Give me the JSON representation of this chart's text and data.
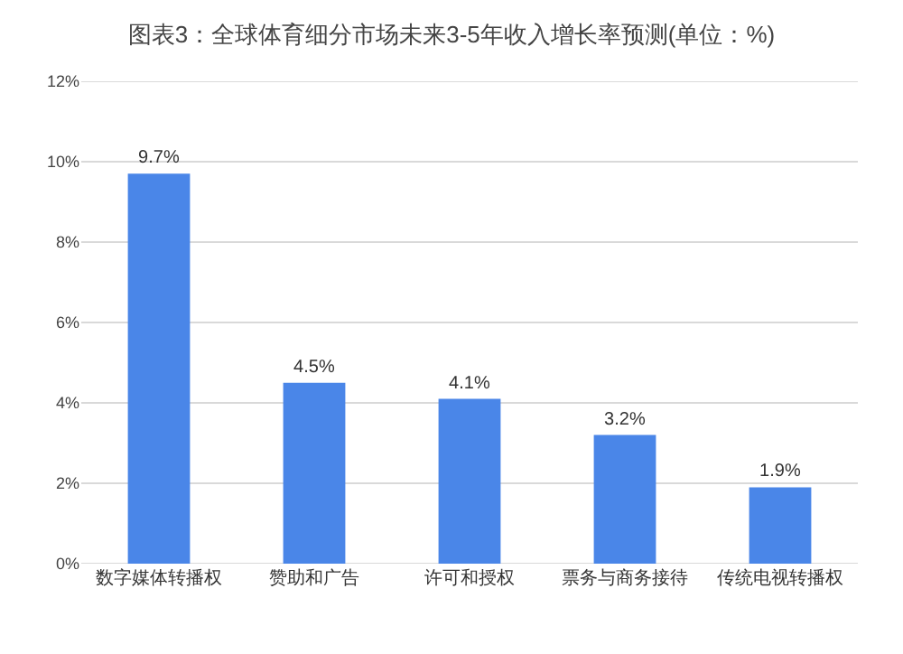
{
  "chart_data": {
    "type": "bar",
    "title": "图表3：全球体育细分市场未来3-5年收入增长率预测(单位：%)",
    "categories": [
      "数字媒体转播权",
      "赞助和广告",
      "许可和授权",
      "票务与商务接待",
      "传统电视转播权"
    ],
    "values": [
      9.7,
      4.5,
      4.1,
      3.2,
      1.9
    ],
    "value_labels": [
      "9.7%",
      "4.5%",
      "4.1%",
      "3.2%",
      "1.9%"
    ],
    "color": "#4a86e8",
    "ylim": [
      0,
      12
    ],
    "yticks": [
      {
        "value": 0,
        "label": "0%"
      },
      {
        "value": 2,
        "label": "2%"
      },
      {
        "value": 4,
        "label": "4%"
      },
      {
        "value": 6,
        "label": "6%"
      },
      {
        "value": 8,
        "label": "8%"
      },
      {
        "value": 10,
        "label": "10%"
      },
      {
        "value": 12,
        "label": "12%"
      }
    ],
    "grid": "y"
  }
}
